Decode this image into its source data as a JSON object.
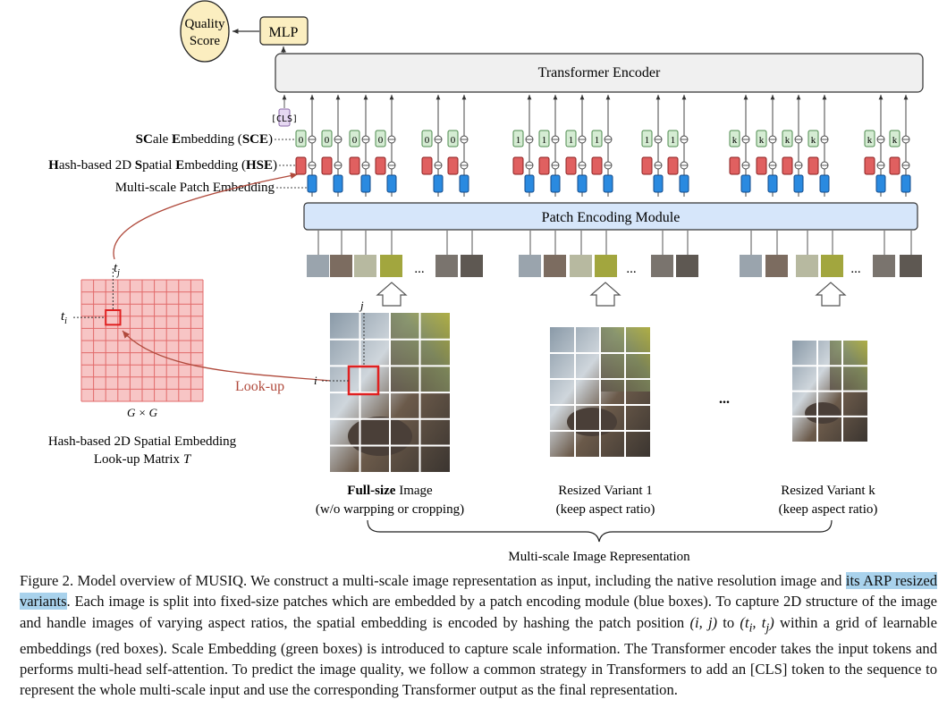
{
  "figure": {
    "quality_score": [
      "Quality",
      "Score"
    ],
    "mlp": "MLP",
    "transformer": "Transformer Encoder",
    "cls": "[CLS]",
    "sce_label": {
      "p1": "S",
      "p2": "C",
      "p3": "ale ",
      "p4": "E",
      "p5": "mbedding (",
      "p6": "SCE",
      "p7": ")"
    },
    "hse_label": {
      "p1": "H",
      "p2": "ash-based 2D ",
      "p3": "S",
      "p4": "patial ",
      "p5": "E",
      "p6": "mbedding (",
      "p7": "HSE",
      "p8": ")"
    },
    "mpe_label": "Multi-scale Patch Embedding",
    "patch_module": "Patch Encoding Module",
    "ellipsis": "...",
    "scale_ids": [
      "0",
      "1",
      "k"
    ],
    "tj": "t",
    "tj_sub": "j",
    "ti": "t",
    "ti_sub": "i",
    "gxg": "G × G",
    "lookup": "Look-up",
    "j": "j",
    "i": "i",
    "matrix_title": "Hash-based 2D Spatial Embedding",
    "matrix_title2": "Look-up Matrix ",
    "matrix_T": "T",
    "full_bold": "Full-size",
    "full_rest": " Image",
    "full_sub": "(w/o warpping or cropping)",
    "resized1": "Resized Variant 1",
    "resizedk": "Resized Variant k",
    "keep_aspect": "(keep aspect ratio)",
    "multi_scale": "Multi-scale Image Representation",
    "colors": {
      "green": "#d5ecd3",
      "red": "#e06060",
      "blue": "#2a8ae0",
      "grid_red": "#f7c5c5",
      "arrow_red": "#b04a3c",
      "patch_module_fill": "#d6e6fa",
      "score_fill": "#fbeec0"
    }
  },
  "caption": {
    "s1": "Figure 2. Model overview of MUSIQ. We construct a multi-scale image representation as input, including the native resolution image and ",
    "highlight": "its ARP resized variants",
    "s2": ". Each image is split into fixed-size patches which are embedded by a patch encoding module (blue boxes). To capture 2D structure of the image and handle images of varying aspect ratios, the spatial embedding is encoded by hashing the patch position ",
    "pos_ij": "(i, j)",
    "s3": " to ",
    "pos_t": "(t",
    "pos_ti": "i",
    "pos_mid": ", t",
    "pos_tj": "j",
    "pos_end": ")",
    "s4": " within a grid of learnable embeddings (red boxes). Scale Embedding (green boxes) is introduced to capture scale information. The Transformer encoder takes the input tokens and performs multi-head self-attention. To predict the image quality, we follow a common strategy in Transformers to add an [CLS] token to the sequence to represent the whole multi-scale input and use the corresponding Transformer output as the final representation."
  }
}
